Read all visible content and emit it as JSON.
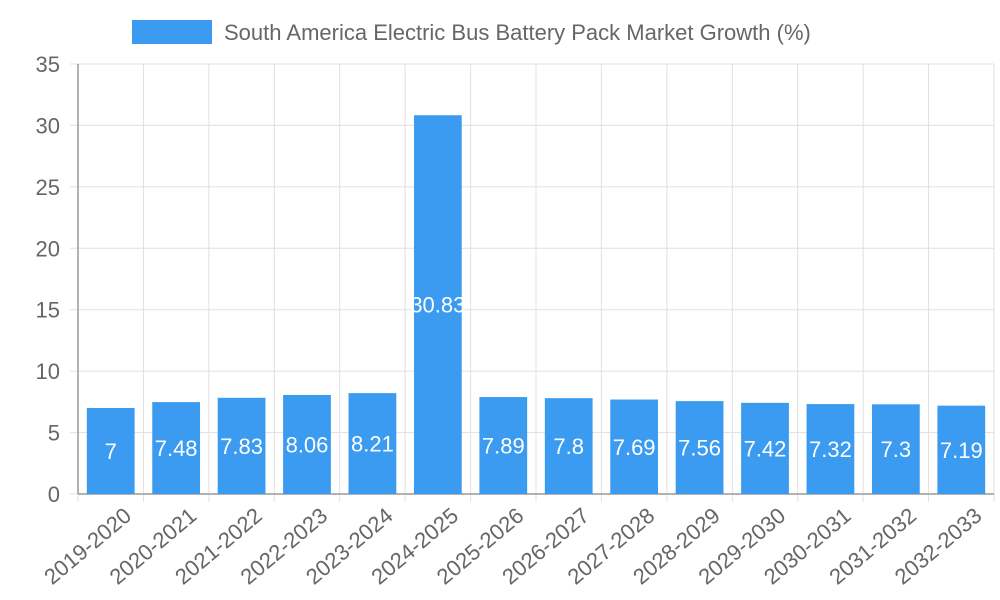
{
  "chart_data": {
    "type": "bar",
    "title": "",
    "xlabel": "",
    "ylabel": "",
    "categories": [
      "2019-2020",
      "2020-2021",
      "2021-2022",
      "2022-2023",
      "2023-2024",
      "2024-2025",
      "2025-2026",
      "2026-2027",
      "2027-2028",
      "2028-2029",
      "2029-2030",
      "2030-2031",
      "2031-2032",
      "2032-2033"
    ],
    "series": [
      {
        "name": "South America Electric Bus Battery Pack Market Growth (%)",
        "values": [
          7,
          7.48,
          7.83,
          8.06,
          8.21,
          30.83,
          7.89,
          7.8,
          7.69,
          7.56,
          7.42,
          7.32,
          7.3,
          7.19
        ],
        "color": "#3a9bf0"
      }
    ],
    "ylim": [
      0,
      35
    ],
    "yticks": [
      0,
      5,
      10,
      15,
      20,
      25,
      30,
      35
    ],
    "grid": true,
    "legend_position": "top-center"
  },
  "colors": {
    "grid": "#e0e0e0",
    "axis": "#999999",
    "text": "#666666",
    "label": "#ffffff"
  }
}
